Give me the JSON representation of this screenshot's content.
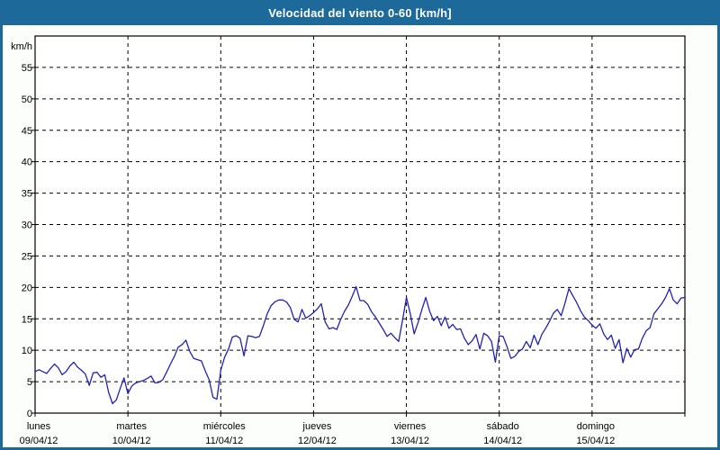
{
  "window": {
    "title_bar": {
      "text": "Velocidad del viento 0-60 [km/h]",
      "bg_color": "#1d699a",
      "text_color": "#ffffff"
    }
  },
  "colors": {
    "frame_border": "#1d699a",
    "page_background": "#fbfefb",
    "plot_background": "#fefffe",
    "grid_color": "#000000",
    "axis_color": "#000000",
    "text_color": "#000000",
    "line_color": "#2222b0"
  },
  "chart_data": {
    "type": "line",
    "title": "Velocidad del viento 0-60 [km/h]",
    "unit_label": "km/h",
    "ylim": [
      0,
      60
    ],
    "ytick_step": 5,
    "yticks": [
      0,
      5,
      10,
      15,
      20,
      25,
      30,
      35,
      40,
      45,
      50,
      55
    ],
    "grid": "dashed",
    "legend_position": "none",
    "x_axis": {
      "points_per_day": 24,
      "days": [
        {
          "name": "lunes",
          "date": "09/04/12"
        },
        {
          "name": "martes",
          "date": "10/04/12"
        },
        {
          "name": "miércoles",
          "date": "11/04/12"
        },
        {
          "name": "jueves",
          "date": "12/04/12"
        },
        {
          "name": "viernes",
          "date": "13/04/12"
        },
        {
          "name": "sábado",
          "date": "14/04/12"
        },
        {
          "name": "domingo",
          "date": "15/04/12"
        }
      ]
    },
    "series": [
      {
        "name": "velocidad-del-viento",
        "unit": "km/h",
        "color": "#2222b0",
        "values": [
          6.6,
          6.9,
          6.6,
          6.3,
          7.1,
          7.8,
          7.2,
          6.1,
          6.6,
          7.5,
          8.1,
          7.3,
          6.8,
          6.2,
          4.4,
          6.4,
          6.5,
          5.7,
          6.1,
          3.3,
          1.5,
          2.1,
          3.9,
          5.6,
          3.1,
          4.3,
          4.8,
          5.0,
          5.2,
          5.5,
          5.9,
          4.8,
          4.9,
          5.3,
          6.5,
          7.8,
          9.0,
          10.5,
          10.9,
          11.6,
          9.8,
          8.7,
          8.5,
          8.3,
          6.7,
          5.3,
          2.5,
          2.2,
          6.8,
          8.9,
          10.2,
          12.1,
          12.3,
          11.9,
          9.1,
          12.3,
          12.2,
          12.0,
          12.2,
          13.9,
          15.8,
          17.1,
          17.7,
          18.0,
          18.0,
          17.7,
          16.8,
          14.9,
          14.5,
          16.5,
          15.1,
          15.5,
          16.0,
          16.6,
          17.4,
          14.5,
          13.4,
          13.6,
          13.3,
          14.9,
          16.2,
          17.2,
          18.6,
          20.1,
          17.9,
          17.9,
          17.3,
          16.1,
          15.3,
          14.3,
          13.3,
          12.2,
          12.7,
          12.0,
          11.4,
          14.8,
          18.4,
          15.8,
          12.6,
          14.4,
          16.5,
          18.4,
          16.2,
          14.7,
          15.4,
          13.9,
          15.3,
          13.5,
          14.1,
          13.3,
          13.4,
          11.9,
          10.9,
          11.5,
          12.5,
          10.2,
          12.7,
          12.3,
          11.4,
          8.1,
          12.3,
          12.2,
          10.6,
          8.7,
          9.0,
          9.8,
          10.2,
          11.4,
          10.4,
          12.4,
          10.9,
          12.5,
          13.5,
          14.6,
          15.9,
          16.5,
          15.5,
          17.5,
          19.8,
          18.7,
          17.6,
          16.3,
          15.3,
          14.7,
          14.0,
          13.5,
          14.2,
          12.6,
          11.7,
          12.4,
          10.3,
          11.7,
          8.0,
          10.3,
          8.9,
          10.1,
          10.2,
          11.9,
          13.1,
          13.6,
          15.8,
          16.6,
          17.4,
          18.4,
          19.8,
          18.0,
          17.4,
          18.3,
          18.4
        ]
      }
    ]
  }
}
